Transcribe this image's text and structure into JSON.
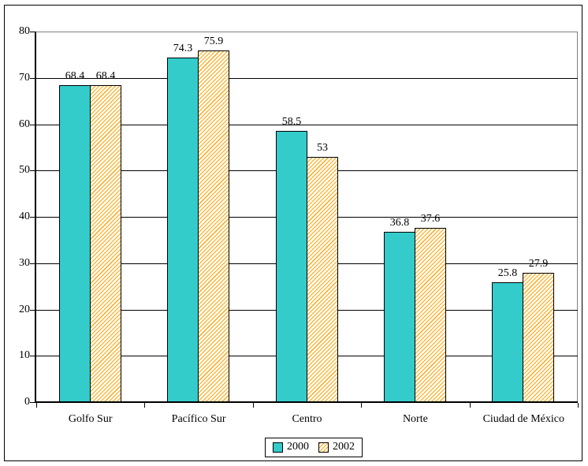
{
  "chart_data": {
    "type": "bar",
    "title": "",
    "categories": [
      "Golfo Sur",
      "Pacífico Sur",
      "Centro",
      "Norte",
      "Ciudad de México"
    ],
    "series": [
      {
        "name": "2000",
        "values": [
          68.4,
          74.3,
          58.5,
          36.8,
          25.8
        ],
        "style": "solid-teal"
      },
      {
        "name": "2002",
        "values": [
          68.4,
          75.9,
          53,
          37.6,
          27.9
        ],
        "style": "orange-hatch"
      }
    ],
    "value_labels": [
      [
        "68.4",
        "74.3",
        "58.5",
        "36.8",
        "25.8"
      ],
      [
        "68.4",
        "75.9",
        "53",
        "37.6",
        "27.9"
      ]
    ],
    "ylim": [
      0,
      80
    ],
    "yticks": [
      0,
      10,
      20,
      30,
      40,
      50,
      60,
      70,
      80
    ],
    "grid": "horizontal",
    "legend_position": "bottom-center",
    "colors": {
      "series_2000_fill": "#34CBCB",
      "series_2002_hatch_line": "#FFA41C",
      "series_2002_hatch_bg": "#FFFEF2",
      "bar_border": "#000000",
      "gridline": "#000000",
      "plot_border": "#808080",
      "background": "#FFFFFF"
    }
  }
}
